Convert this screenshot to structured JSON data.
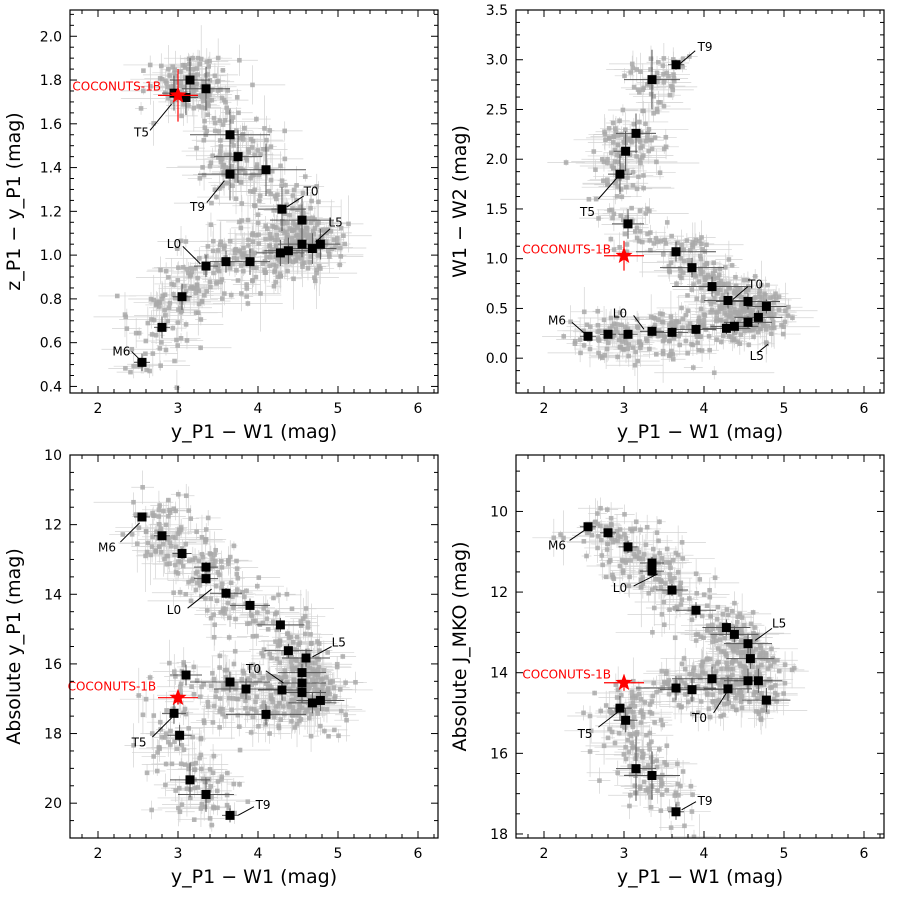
{
  "chart_data": [
    {
      "type": "scatter",
      "panel": "top-left",
      "xlabel": "y_P1 − W1 (mag)",
      "ylabel": "z_P1 − y_P1 (mag)",
      "xlim": [
        1.65,
        6.25
      ],
      "ylim": [
        0.37,
        2.12
      ],
      "inverted_y": false,
      "xticks": [
        2,
        3,
        4,
        5,
        6
      ],
      "yticks": [
        0.4,
        0.6,
        0.8,
        1.0,
        1.2,
        1.4,
        1.6,
        1.8,
        2.0
      ],
      "ytick_labels": [
        "0.4",
        "0.6",
        "0.8",
        "1.0",
        "1.2",
        "1.4",
        "1.6",
        "1.8",
        "2.0"
      ],
      "sequence": [
        {
          "x": 2.55,
          "y": 0.51,
          "xe": 0.1,
          "ye": 0.04
        },
        {
          "x": 2.8,
          "y": 0.67,
          "xe": 0.1,
          "ye": 0.05
        },
        {
          "x": 3.05,
          "y": 0.81,
          "xe": 0.12,
          "ye": 0.06
        },
        {
          "x": 3.35,
          "y": 0.95,
          "xe": 0.15,
          "ye": 0.05
        },
        {
          "x": 3.6,
          "y": 0.97,
          "xe": 0.2,
          "ye": 0.05
        },
        {
          "x": 3.9,
          "y": 0.97,
          "xe": 0.25,
          "ye": 0.06
        },
        {
          "x": 4.28,
          "y": 1.01,
          "xe": 0.3,
          "ye": 0.06
        },
        {
          "x": 4.38,
          "y": 1.02,
          "xe": 0.3,
          "ye": 0.06
        },
        {
          "x": 4.55,
          "y": 1.05,
          "xe": 0.3,
          "ye": 0.06
        },
        {
          "x": 4.68,
          "y": 1.03,
          "xe": 0.3,
          "ye": 0.07
        },
        {
          "x": 4.78,
          "y": 1.05,
          "xe": 0.25,
          "ye": 0.07
        },
        {
          "x": 4.3,
          "y": 1.21,
          "xe": 0.3,
          "ye": 0.1
        },
        {
          "x": 4.55,
          "y": 1.16,
          "xe": 0.4,
          "ye": 0.1
        },
        {
          "x": 4.1,
          "y": 1.39,
          "xe": 0.5,
          "ye": 0.12
        },
        {
          "x": 3.65,
          "y": 1.37,
          "xe": 0.4,
          "ye": 0.12
        },
        {
          "x": 3.75,
          "y": 1.45,
          "xe": 0.3,
          "ye": 0.12
        },
        {
          "x": 3.65,
          "y": 1.55,
          "xe": 0.5,
          "ye": 0.12
        },
        {
          "x": 3.35,
          "y": 1.76,
          "xe": 0.3,
          "ye": 0.1
        },
        {
          "x": 3.15,
          "y": 1.8,
          "xe": 0.25,
          "ye": 0.1
        },
        {
          "x": 2.95,
          "y": 1.74,
          "xe": 0.15,
          "ye": 0.08
        },
        {
          "x": 3.1,
          "y": 1.72,
          "xe": 0.15,
          "ye": 0.08
        }
      ],
      "target": {
        "label": "COCONUTS-1B",
        "x": 3.0,
        "y": 1.73,
        "xe": 0.25,
        "ye": 0.12
      },
      "labels": [
        {
          "text": "M6",
          "x": 2.18,
          "y": 0.56,
          "lx1": 2.42,
          "ly1": 0.56,
          "lx2": 2.53,
          "ly2": 0.52
        },
        {
          "text": "L0",
          "x": 2.86,
          "y": 1.05,
          "lx1": 3.06,
          "ly1": 1.04,
          "lx2": 3.28,
          "ly2": 0.96
        },
        {
          "text": "L5",
          "x": 4.88,
          "y": 1.15,
          "lx1": 4.9,
          "ly1": 1.12,
          "lx2": 4.72,
          "ly2": 1.06
        },
        {
          "text": "T0",
          "x": 4.57,
          "y": 1.29,
          "lx1": 4.57,
          "ly1": 1.27,
          "lx2": 4.36,
          "ly2": 1.22
        },
        {
          "text": "T9",
          "x": 3.15,
          "y": 1.22,
          "lx1": 3.36,
          "ly1": 1.24,
          "lx2": 3.58,
          "ly2": 1.34
        },
        {
          "text": "T5",
          "x": 2.45,
          "y": 1.56,
          "lx1": 2.65,
          "ly1": 1.57,
          "lx2": 2.92,
          "ly2": 1.69
        }
      ],
      "target_label_pos": {
        "x": 1.68,
        "y": 1.77
      }
    },
    {
      "type": "scatter",
      "panel": "top-right",
      "xlabel": "y_P1 − W1 (mag)",
      "ylabel": "W1 − W2 (mag)",
      "xlim": [
        1.65,
        6.25
      ],
      "ylim": [
        -0.35,
        3.5
      ],
      "inverted_y": false,
      "xticks": [
        2,
        3,
        4,
        5,
        6
      ],
      "yticks": [
        0.0,
        0.5,
        1.0,
        1.5,
        2.0,
        2.5,
        3.0,
        3.5
      ],
      "ytick_labels": [
        "0.0",
        "0.5",
        "1.0",
        "1.5",
        "2.0",
        "2.5",
        "3.0",
        "3.5"
      ],
      "sequence": [
        {
          "x": 2.55,
          "y": 0.22,
          "xe": 0.1,
          "ye": 0.04
        },
        {
          "x": 2.8,
          "y": 0.24,
          "xe": 0.1,
          "ye": 0.04
        },
        {
          "x": 3.05,
          "y": 0.24,
          "xe": 0.12,
          "ye": 0.04
        },
        {
          "x": 3.35,
          "y": 0.27,
          "xe": 0.15,
          "ye": 0.05
        },
        {
          "x": 3.6,
          "y": 0.26,
          "xe": 0.2,
          "ye": 0.05
        },
        {
          "x": 3.9,
          "y": 0.29,
          "xe": 0.25,
          "ye": 0.05
        },
        {
          "x": 4.28,
          "y": 0.3,
          "xe": 0.3,
          "ye": 0.06
        },
        {
          "x": 4.38,
          "y": 0.32,
          "xe": 0.3,
          "ye": 0.06
        },
        {
          "x": 4.55,
          "y": 0.36,
          "xe": 0.3,
          "ye": 0.06
        },
        {
          "x": 4.68,
          "y": 0.41,
          "xe": 0.3,
          "ye": 0.07
        },
        {
          "x": 4.78,
          "y": 0.52,
          "xe": 0.25,
          "ye": 0.07
        },
        {
          "x": 4.3,
          "y": 0.58,
          "xe": 0.3,
          "ye": 0.08
        },
        {
          "x": 4.55,
          "y": 0.57,
          "xe": 0.4,
          "ye": 0.08
        },
        {
          "x": 4.1,
          "y": 0.72,
          "xe": 0.5,
          "ye": 0.1
        },
        {
          "x": 3.85,
          "y": 0.91,
          "xe": 0.4,
          "ye": 0.1
        },
        {
          "x": 3.65,
          "y": 1.07,
          "xe": 0.5,
          "ye": 0.1
        },
        {
          "x": 3.05,
          "y": 1.35,
          "xe": 0.2,
          "ye": 0.15
        },
        {
          "x": 2.95,
          "y": 1.85,
          "xe": 0.15,
          "ye": 0.2
        },
        {
          "x": 3.02,
          "y": 2.08,
          "xe": 0.15,
          "ye": 0.2
        },
        {
          "x": 3.15,
          "y": 2.26,
          "xe": 0.25,
          "ye": 0.2
        },
        {
          "x": 3.35,
          "y": 2.8,
          "xe": 0.35,
          "ye": 0.3
        },
        {
          "x": 3.65,
          "y": 2.95,
          "xe": 0.1,
          "ye": 0.05
        }
      ],
      "target": {
        "label": "COCONUTS-1B",
        "x": 3.0,
        "y": 1.03,
        "xe": 0.25,
        "ye": 0.15
      },
      "labels": [
        {
          "text": "M6",
          "x": 2.05,
          "y": 0.38,
          "lx1": 2.35,
          "ly1": 0.36,
          "lx2": 2.52,
          "ly2": 0.24
        },
        {
          "text": "L0",
          "x": 2.86,
          "y": 0.45,
          "lx1": 3.12,
          "ly1": 0.43,
          "lx2": 3.25,
          "ly2": 0.29
        },
        {
          "text": "L5",
          "x": 4.57,
          "y": 0.02,
          "lx1": 4.8,
          "ly1": 0.14,
          "lx2": 4.66,
          "ly2": 0.05
        },
        {
          "text": "T0",
          "x": 4.55,
          "y": 0.74,
          "lx1": 4.55,
          "ly1": 0.72,
          "lx2": 4.36,
          "ly2": 0.59
        },
        {
          "text": "T5",
          "x": 2.45,
          "y": 1.47,
          "lx1": 2.68,
          "ly1": 1.6,
          "lx2": 2.92,
          "ly2": 1.82
        },
        {
          "text": "T9",
          "x": 3.92,
          "y": 3.13,
          "lx1": 3.89,
          "ly1": 3.09,
          "lx2": 3.7,
          "ly2": 2.96
        }
      ],
      "target_label_pos": {
        "x": 1.73,
        "y": 1.09
      }
    },
    {
      "type": "scatter",
      "panel": "bottom-left",
      "xlabel": "y_P1 − W1 (mag)",
      "ylabel": "Absolute y_P1 (mag)",
      "xlim": [
        1.65,
        6.25
      ],
      "ylim": [
        21.0,
        10.0
      ],
      "inverted_y": true,
      "xticks": [
        2,
        3,
        4,
        5,
        6
      ],
      "yticks": [
        10,
        12,
        14,
        16,
        18,
        20
      ],
      "ytick_labels": [
        "10",
        "12",
        "14",
        "16",
        "18",
        "20"
      ],
      "sequence": [
        {
          "x": 2.55,
          "y": 11.78,
          "xe": 0.1,
          "ye": 0.1
        },
        {
          "x": 2.8,
          "y": 12.32,
          "xe": 0.1,
          "ye": 0.1
        },
        {
          "x": 3.05,
          "y": 12.83,
          "xe": 0.12,
          "ye": 0.15
        },
        {
          "x": 3.35,
          "y": 13.22,
          "xe": 0.15,
          "ye": 0.15
        },
        {
          "x": 3.35,
          "y": 13.55,
          "xe": 0.15,
          "ye": 0.15
        },
        {
          "x": 3.6,
          "y": 13.97,
          "xe": 0.2,
          "ye": 0.15
        },
        {
          "x": 3.9,
          "y": 14.32,
          "xe": 0.25,
          "ye": 0.2
        },
        {
          "x": 4.28,
          "y": 14.88,
          "xe": 0.3,
          "ye": 0.2
        },
        {
          "x": 4.38,
          "y": 15.62,
          "xe": 0.3,
          "ye": 0.2
        },
        {
          "x": 4.6,
          "y": 15.83,
          "xe": 0.3,
          "ye": 0.25
        },
        {
          "x": 4.55,
          "y": 16.25,
          "xe": 0.3,
          "ye": 0.25
        },
        {
          "x": 4.55,
          "y": 16.55,
          "xe": 0.3,
          "ye": 0.25
        },
        {
          "x": 4.55,
          "y": 16.82,
          "xe": 0.3,
          "ye": 0.3
        },
        {
          "x": 4.68,
          "y": 17.12,
          "xe": 0.3,
          "ye": 0.3
        },
        {
          "x": 4.78,
          "y": 17.05,
          "xe": 0.3,
          "ye": 0.3
        },
        {
          "x": 4.3,
          "y": 16.75,
          "xe": 0.3,
          "ye": 0.3
        },
        {
          "x": 3.85,
          "y": 16.72,
          "xe": 0.4,
          "ye": 0.3
        },
        {
          "x": 3.65,
          "y": 16.52,
          "xe": 0.5,
          "ye": 0.3
        },
        {
          "x": 4.1,
          "y": 17.45,
          "xe": 0.5,
          "ye": 0.3
        },
        {
          "x": 3.1,
          "y": 16.32,
          "xe": 0.2,
          "ye": 0.3
        },
        {
          "x": 2.95,
          "y": 17.42,
          "xe": 0.15,
          "ye": 0.3
        },
        {
          "x": 3.02,
          "y": 18.05,
          "xe": 0.15,
          "ye": 0.3
        },
        {
          "x": 3.15,
          "y": 19.33,
          "xe": 0.25,
          "ye": 0.5
        },
        {
          "x": 3.35,
          "y": 19.75,
          "xe": 0.35,
          "ye": 0.5
        },
        {
          "x": 3.65,
          "y": 20.35,
          "xe": 0.1,
          "ye": 0.2
        }
      ],
      "target": {
        "label": "COCONUTS-1B",
        "x": 3.0,
        "y": 16.97,
        "xe": 0.25,
        "ye": 0.2
      },
      "labels": [
        {
          "text": "M6",
          "x": 2.0,
          "y": 12.65,
          "lx1": 2.28,
          "ly1": 12.5,
          "lx2": 2.52,
          "ly2": 11.95
        },
        {
          "text": "L0",
          "x": 2.86,
          "y": 14.45,
          "lx1": 3.12,
          "ly1": 14.4,
          "lx2": 3.42,
          "ly2": 13.85
        },
        {
          "text": "L5",
          "x": 4.92,
          "y": 15.38,
          "lx1": 4.92,
          "ly1": 15.5,
          "lx2": 4.68,
          "ly2": 15.8
        },
        {
          "text": "T0",
          "x": 3.85,
          "y": 16.15,
          "lx1": 4.1,
          "ly1": 16.2,
          "lx2": 4.32,
          "ly2": 16.55
        },
        {
          "text": "T5",
          "x": 2.42,
          "y": 18.25,
          "lx1": 2.68,
          "ly1": 18.1,
          "lx2": 2.92,
          "ly2": 17.55
        },
        {
          "text": "T9",
          "x": 3.97,
          "y": 20.05,
          "lx1": 3.95,
          "ly1": 20.1,
          "lx2": 3.75,
          "ly2": 20.35
        }
      ],
      "target_label_pos": {
        "x": 1.62,
        "y": 16.65
      }
    },
    {
      "type": "scatter",
      "panel": "bottom-right",
      "xlabel": "y_P1 − W1 (mag)",
      "ylabel": "Absolute J_MKO (mag)",
      "xlim": [
        1.65,
        6.25
      ],
      "ylim": [
        18.1,
        8.6
      ],
      "inverted_y": true,
      "xticks": [
        2,
        3,
        4,
        5,
        6
      ],
      "yticks": [
        10,
        12,
        14,
        16,
        18
      ],
      "ytick_labels": [
        "10",
        "12",
        "14",
        "16",
        "18"
      ],
      "sequence": [
        {
          "x": 2.55,
          "y": 10.38,
          "xe": 0.1,
          "ye": 0.1
        },
        {
          "x": 2.8,
          "y": 10.53,
          "xe": 0.1,
          "ye": 0.1
        },
        {
          "x": 3.05,
          "y": 10.88,
          "xe": 0.12,
          "ye": 0.15
        },
        {
          "x": 3.35,
          "y": 11.28,
          "xe": 0.15,
          "ye": 0.15
        },
        {
          "x": 3.35,
          "y": 11.48,
          "xe": 0.15,
          "ye": 0.15
        },
        {
          "x": 3.6,
          "y": 11.95,
          "xe": 0.2,
          "ye": 0.15
        },
        {
          "x": 3.9,
          "y": 12.45,
          "xe": 0.25,
          "ye": 0.2
        },
        {
          "x": 4.28,
          "y": 12.88,
          "xe": 0.3,
          "ye": 0.2
        },
        {
          "x": 4.38,
          "y": 13.05,
          "xe": 0.3,
          "ye": 0.2
        },
        {
          "x": 4.55,
          "y": 13.28,
          "xe": 0.3,
          "ye": 0.25
        },
        {
          "x": 4.58,
          "y": 13.65,
          "xe": 0.3,
          "ye": 0.25
        },
        {
          "x": 4.55,
          "y": 14.2,
          "xe": 0.3,
          "ye": 0.3
        },
        {
          "x": 4.68,
          "y": 14.2,
          "xe": 0.3,
          "ye": 0.3
        },
        {
          "x": 4.78,
          "y": 14.68,
          "xe": 0.3,
          "ye": 0.3
        },
        {
          "x": 4.3,
          "y": 14.4,
          "xe": 0.3,
          "ye": 0.3
        },
        {
          "x": 4.1,
          "y": 14.15,
          "xe": 0.5,
          "ye": 0.3
        },
        {
          "x": 3.85,
          "y": 14.42,
          "xe": 0.4,
          "ye": 0.3
        },
        {
          "x": 3.65,
          "y": 14.38,
          "xe": 0.5,
          "ye": 0.3
        },
        {
          "x": 2.95,
          "y": 14.88,
          "xe": 0.15,
          "ye": 0.3
        },
        {
          "x": 3.02,
          "y": 15.18,
          "xe": 0.15,
          "ye": 0.3
        },
        {
          "x": 3.15,
          "y": 16.38,
          "xe": 0.25,
          "ye": 0.8
        },
        {
          "x": 3.35,
          "y": 16.55,
          "xe": 0.35,
          "ye": 0.6
        },
        {
          "x": 3.65,
          "y": 17.45,
          "xe": 0.1,
          "ye": 0.2
        }
      ],
      "target": {
        "label": "COCONUTS-1B",
        "x": 3.0,
        "y": 14.25,
        "xe": 0.25,
        "ye": 0.2
      },
      "labels": [
        {
          "text": "M6",
          "x": 2.05,
          "y": 10.85,
          "lx1": 2.32,
          "ly1": 10.72,
          "lx2": 2.52,
          "ly2": 10.45
        },
        {
          "text": "L0",
          "x": 2.86,
          "y": 11.9,
          "lx1": 3.12,
          "ly1": 11.85,
          "lx2": 3.42,
          "ly2": 11.55
        },
        {
          "text": "L5",
          "x": 4.85,
          "y": 12.78,
          "lx1": 4.85,
          "ly1": 12.9,
          "lx2": 4.64,
          "ly2": 13.2
        },
        {
          "text": "T0",
          "x": 3.85,
          "y": 15.12,
          "lx1": 4.12,
          "ly1": 15.0,
          "lx2": 4.28,
          "ly2": 14.5
        },
        {
          "text": "T5",
          "x": 2.42,
          "y": 15.52,
          "lx1": 2.68,
          "ly1": 15.35,
          "lx2": 2.92,
          "ly2": 14.98
        },
        {
          "text": "T9",
          "x": 3.92,
          "y": 17.18,
          "lx1": 3.9,
          "ly1": 17.2,
          "lx2": 3.72,
          "ly2": 17.4
        }
      ],
      "target_label_pos": {
        "x": 1.73,
        "y": 14.05
      }
    }
  ],
  "colors": {
    "background_points": "#a9a9a9",
    "background_errorbars": "#d3d3d3",
    "sequence": "#000000",
    "target": "#ff0000",
    "target_label": "#ff0000"
  }
}
